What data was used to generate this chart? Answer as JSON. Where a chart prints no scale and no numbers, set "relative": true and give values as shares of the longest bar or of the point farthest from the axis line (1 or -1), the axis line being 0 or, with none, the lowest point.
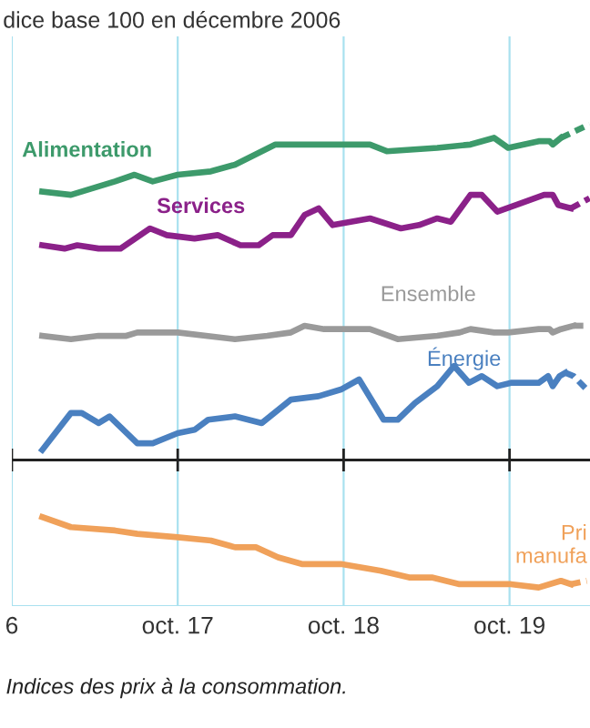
{
  "chart_data": {
    "type": "line",
    "title": "dice base 100 en décembre 2006",
    "relative": true,
    "grid": "x",
    "line_style": "solid",
    "marker": "none",
    "xlim": [
      "2016-10-01",
      "2020-03-26"
    ],
    "xticks": [
      {
        "value": "2016-10-01",
        "label": "6"
      },
      {
        "value": "2017-10-01",
        "label": "oct. 17"
      },
      {
        "value": "2018-10-01",
        "label": "oct. 18"
      },
      {
        "value": "2019-10-01",
        "label": "oct. 19"
      }
    ],
    "annotations": [
      "Indices des prix à la consommation."
    ],
    "series": [
      {
        "name": "Alimentation",
        "color": "#3d9a6b",
        "x": [
          "2016-12-07",
          "2017-02-08",
          "2017-05-16",
          "2017-06-28",
          "2017-08-07",
          "2017-10-01",
          "2017-12-13",
          "2018-02-04",
          "2018-05-04",
          "2018-10-07",
          "2018-11-28",
          "2019-01-04",
          "2019-04-25",
          "2019-07-07",
          "2019-08-28",
          "2019-09-28",
          "2019-12-04",
          "2019-12-28",
          "2020-01-04",
          "2020-01-22"
        ],
        "values": [
          0.8,
          0.79,
          0.83,
          0.85,
          0.83,
          0.85,
          0.86,
          0.88,
          0.94,
          0.94,
          0.94,
          0.92,
          0.93,
          0.94,
          0.96,
          0.93,
          0.95,
          0.95,
          0.94,
          0.96
        ]
      },
      {
        "color": "#3d9a6b",
        "line_style": "dashed",
        "x": [
          "2020-01-22",
          "2020-03-25"
        ],
        "values": [
          0.96,
          1.0
        ]
      },
      {
        "name": "Services",
        "color": "#8b2189",
        "x": [
          "2016-12-07",
          "2017-01-25",
          "2017-02-22",
          "2017-04-10",
          "2017-05-28",
          "2017-08-01",
          "2017-09-07",
          "2017-11-07",
          "2017-12-28",
          "2018-02-16",
          "2018-03-28",
          "2018-04-28",
          "2018-06-07",
          "2018-07-07",
          "2018-08-07",
          "2018-09-07",
          "2018-11-28",
          "2019-02-04",
          "2019-03-16",
          "2019-04-25",
          "2019-05-25",
          "2019-07-07",
          "2019-08-01",
          "2019-09-04",
          "2019-10-16",
          "2019-12-16",
          "2020-01-04",
          "2020-01-16",
          "2020-02-13"
        ],
        "values": [
          0.64,
          0.63,
          0.64,
          0.63,
          0.63,
          0.69,
          0.67,
          0.66,
          0.67,
          0.64,
          0.64,
          0.67,
          0.67,
          0.73,
          0.75,
          0.7,
          0.72,
          0.69,
          0.7,
          0.72,
          0.71,
          0.79,
          0.79,
          0.74,
          0.76,
          0.79,
          0.79,
          0.76,
          0.75
        ]
      },
      {
        "color": "#8b2189",
        "line_style": "dashed",
        "x": [
          "2020-02-13",
          "2020-03-25"
        ],
        "values": [
          0.75,
          0.78
        ]
      },
      {
        "name": "Ensemble",
        "color": "#9a9a9a",
        "x": [
          "2016-12-07",
          "2017-02-08",
          "2017-04-10",
          "2017-06-10",
          "2017-07-04",
          "2017-10-01",
          "2018-02-04",
          "2018-04-16",
          "2018-06-07",
          "2018-07-07",
          "2018-08-19",
          "2018-11-28",
          "2019-01-28",
          "2019-04-25",
          "2019-06-13",
          "2019-07-07",
          "2019-08-28",
          "2019-09-28",
          "2019-12-04",
          "2019-12-28",
          "2020-01-04",
          "2020-01-22",
          "2020-02-19"
        ],
        "values": [
          0.37,
          0.36,
          0.37,
          0.37,
          0.38,
          0.38,
          0.36,
          0.37,
          0.38,
          0.4,
          0.39,
          0.39,
          0.36,
          0.37,
          0.38,
          0.39,
          0.38,
          0.38,
          0.39,
          0.39,
          0.38,
          0.39,
          0.4
        ]
      },
      {
        "color": "#9a9a9a",
        "line_style": "dashed",
        "x": [
          "2020-02-19",
          "2020-03-19"
        ],
        "values": [
          0.4,
          0.4
        ]
      },
      {
        "name": "Énergie",
        "color": "#4a80c0",
        "x": [
          "2016-12-07",
          "2017-02-08",
          "2017-03-04",
          "2017-04-10",
          "2017-05-04",
          "2017-07-04",
          "2017-08-07",
          "2017-10-01",
          "2017-11-07",
          "2017-12-07",
          "2018-02-04",
          "2018-04-04",
          "2018-06-07",
          "2018-08-07",
          "2018-09-25",
          "2018-11-04",
          "2018-12-28",
          "2019-01-28",
          "2019-03-07",
          "2019-04-25",
          "2019-06-01",
          "2019-07-04",
          "2019-08-01",
          "2019-09-04",
          "2019-10-04",
          "2019-12-04",
          "2019-12-25",
          "2020-01-04",
          "2020-01-19",
          "2020-02-01"
        ],
        "values": [
          0.03,
          0.14,
          0.14,
          0.11,
          0.13,
          0.05,
          0.05,
          0.08,
          0.09,
          0.12,
          0.13,
          0.11,
          0.18,
          0.19,
          0.21,
          0.24,
          0.12,
          0.12,
          0.17,
          0.22,
          0.28,
          0.23,
          0.25,
          0.22,
          0.23,
          0.23,
          0.25,
          0.22,
          0.25,
          0.26
        ]
      },
      {
        "color": "#4a80c0",
        "line_style": "dashed",
        "x": [
          "2020-02-01",
          "2020-02-19",
          "2020-03-19"
        ],
        "values": [
          0.26,
          0.25,
          0.21
        ]
      },
      {
        "name": "Pri\nmanufa",
        "color": "#f0a15a",
        "x": [
          "2016-12-07",
          "2017-02-08",
          "2017-05-16",
          "2017-07-04",
          "2017-10-01",
          "2017-12-13",
          "2018-02-04",
          "2018-03-22",
          "2018-05-10",
          "2018-07-01",
          "2018-09-25",
          "2018-12-22",
          "2019-02-22",
          "2019-04-13",
          "2019-06-13",
          "2019-10-04",
          "2019-12-04",
          "2020-01-22",
          "2020-02-13"
        ],
        "values": [
          -0.17,
          -0.2,
          -0.21,
          -0.22,
          -0.23,
          -0.24,
          -0.26,
          -0.26,
          -0.29,
          -0.31,
          -0.31,
          -0.33,
          -0.35,
          -0.35,
          -0.37,
          -0.37,
          -0.38,
          -0.36,
          -0.37
        ]
      },
      {
        "color": "#f0a15a",
        "line_style": "dashed",
        "x": [
          "2020-02-13",
          "2020-03-19"
        ],
        "values": [
          -0.37,
          -0.36
        ]
      }
    ]
  }
}
